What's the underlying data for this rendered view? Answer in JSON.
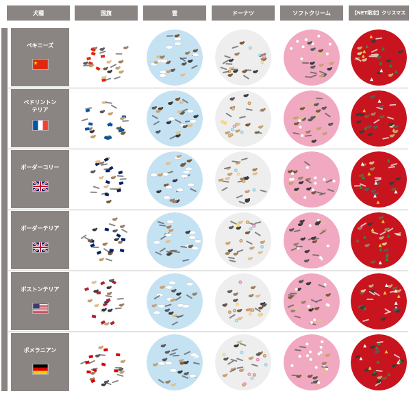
{
  "headers": {
    "breed": "犬種",
    "flag": "国旗",
    "cloud": "雲",
    "donut": "ドーナツ",
    "softcream": "ソフトクリーム",
    "christmas": "【NET限定】クリスマス"
  },
  "rows": [
    {
      "name": "ペキニーズ",
      "flag": "china"
    },
    {
      "name": "ペドリントン\nテリア",
      "flag": "france"
    },
    {
      "name": "ボーダーコリー",
      "flag": "uk"
    },
    {
      "name": "ボーダーテリア",
      "flag": "uk"
    },
    {
      "name": "ボストンテリア",
      "flag": "usa"
    },
    {
      "name": "ポメラニアン",
      "flag": "germany"
    }
  ],
  "colors": {
    "header_bg": "#8a8583",
    "cloud_bg": "#c5e2f3",
    "donut_bg": "#eeeeee",
    "softcream_bg": "#f1a9c2",
    "christmas_bg": "#c8141e"
  }
}
